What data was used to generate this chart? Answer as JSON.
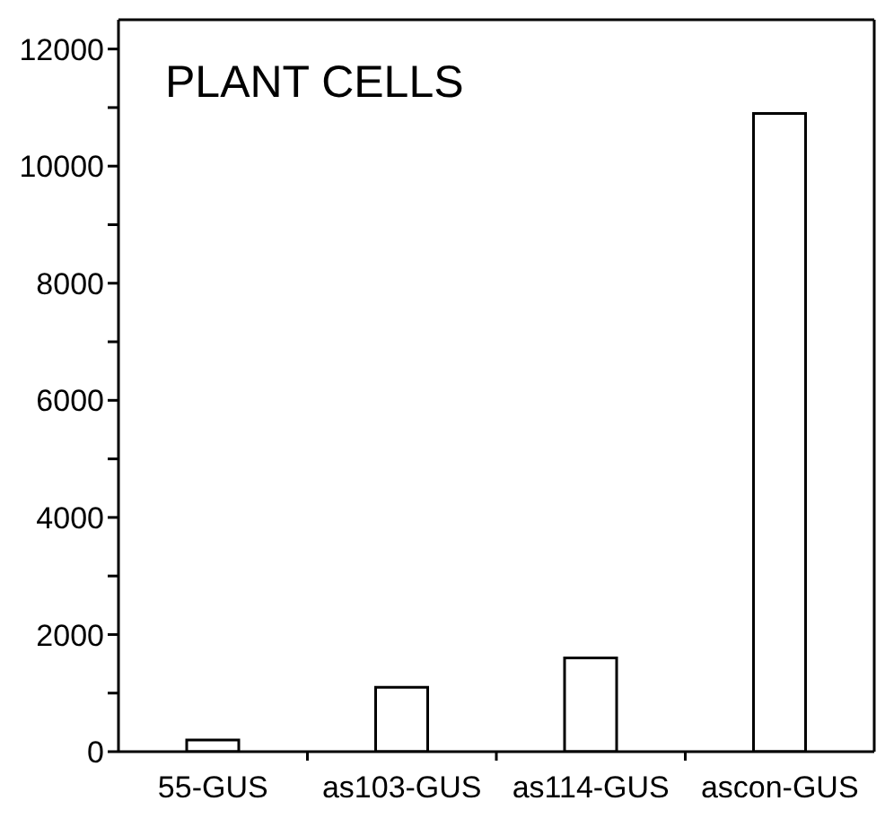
{
  "chart_data": {
    "type": "bar",
    "title": "PLANT CELLS",
    "categories": [
      "55-GUS",
      "as103-GUS",
      "as114-GUS",
      "ascon-GUS"
    ],
    "values": [
      200,
      1100,
      1600,
      10900
    ],
    "color": "#ffffff",
    "ylim": [
      0,
      12500
    ],
    "yticks": [
      0,
      {
        "value": 1000,
        "label": null
      },
      2000,
      {
        "value": 3000,
        "label": null
      },
      4000,
      {
        "value": 5000,
        "label": null
      },
      6000,
      {
        "value": 7000,
        "label": null
      },
      8000,
      {
        "value": 9000,
        "label": null
      },
      10000,
      {
        "value": 11000,
        "label": null
      },
      12000
    ]
  }
}
